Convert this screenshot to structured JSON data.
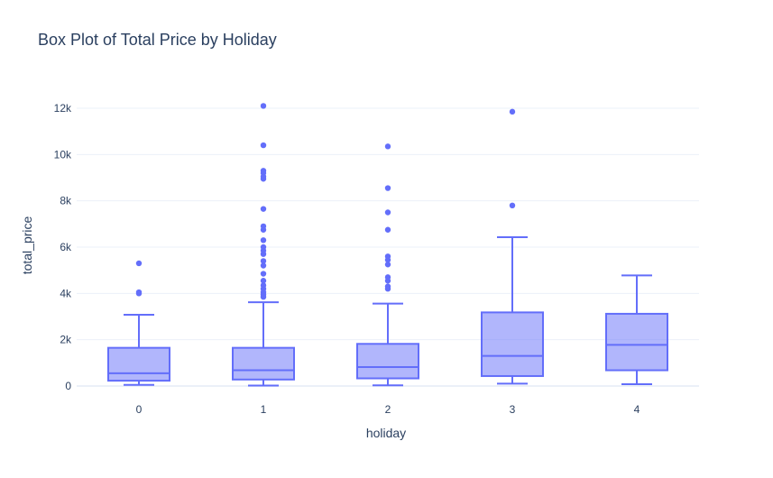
{
  "chart_data": {
    "type": "box",
    "title": "Box Plot of Total Price by Holiday",
    "xlabel": "holiday",
    "ylabel": "total_price",
    "categories": [
      "0",
      "1",
      "2",
      "3",
      "4"
    ],
    "ylim": [
      -400,
      13000
    ],
    "yticks": [
      0,
      2000,
      4000,
      6000,
      8000,
      10000,
      12000
    ],
    "ytick_labels": [
      "0",
      "2k",
      "4k",
      "6k",
      "8k",
      "10k",
      "12k"
    ],
    "grid": true,
    "legend": "none",
    "colors": {
      "line": "#636efa",
      "fill": "#636efa",
      "fill_opacity": 0.5
    },
    "boxes": [
      {
        "category": "0",
        "min": 50,
        "q1": 230,
        "median": 550,
        "q3": 1650,
        "max": 3080,
        "outliers": [
          4000,
          4050,
          5300
        ]
      },
      {
        "category": "1",
        "min": 20,
        "q1": 280,
        "median": 680,
        "q3": 1650,
        "max": 3620,
        "outliers": [
          3850,
          3950,
          4050,
          4200,
          4350,
          4550,
          4850,
          5200,
          5400,
          5700,
          5850,
          6000,
          6300,
          6750,
          6900,
          7650,
          8950,
          9050,
          9200,
          9300,
          10400,
          12100
        ]
      },
      {
        "category": "2",
        "min": 30,
        "q1": 330,
        "median": 820,
        "q3": 1820,
        "max": 3560,
        "outliers": [
          4200,
          4300,
          4550,
          4700,
          5250,
          5450,
          5600,
          6750,
          7500,
          8550,
          10350
        ]
      },
      {
        "category": "3",
        "min": 100,
        "q1": 430,
        "median": 1300,
        "q3": 3180,
        "max": 6430,
        "outliers": [
          7800,
          11850
        ]
      },
      {
        "category": "4",
        "min": 80,
        "q1": 680,
        "median": 1780,
        "q3": 3120,
        "max": 4780,
        "outliers": []
      }
    ]
  }
}
